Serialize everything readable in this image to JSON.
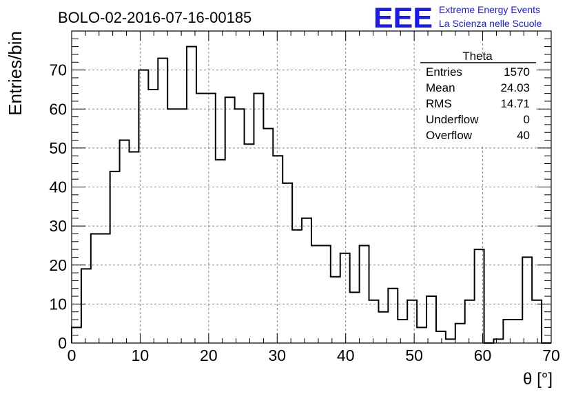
{
  "chart_data": {
    "type": "histogram",
    "title": "BOLO-02-2016-07-16-00185",
    "xlabel": "θ [°]",
    "ylabel": "Entries/bin",
    "xlim": [
      0,
      70
    ],
    "ylim": [
      0,
      80
    ],
    "grid": true,
    "bin_edges_start": 0,
    "bin_width": 1.4,
    "values": [
      4,
      19,
      28,
      28,
      44,
      52,
      49,
      70,
      65,
      73,
      60,
      60,
      76,
      64,
      64,
      47,
      63,
      60,
      51,
      64,
      55,
      48,
      41,
      29,
      32,
      25,
      25,
      17,
      23,
      13,
      25,
      11,
      8,
      14,
      6,
      11,
      4,
      12,
      3,
      1,
      5,
      11,
      24,
      0,
      1,
      6,
      6,
      22,
      11,
      0
    ],
    "xticks": [
      "0",
      "10",
      "20",
      "30",
      "40",
      "50",
      "60",
      "70"
    ],
    "yticks": [
      "0",
      "10",
      "20",
      "30",
      "40",
      "50",
      "60",
      "70"
    ]
  },
  "stats_box": {
    "title": "Theta",
    "rows": [
      {
        "label": "Entries",
        "value": "1570"
      },
      {
        "label": "Mean",
        "value": "24.03"
      },
      {
        "label": "RMS",
        "value": "14.71"
      },
      {
        "label": "Underflow",
        "value": "0"
      },
      {
        "label": "Overflow",
        "value": "40"
      }
    ]
  },
  "logo": {
    "mark": "EEE",
    "line1": "Extreme Energy Events",
    "line2": "La Scienza nelle Scuole",
    "color": "#1a1aee"
  }
}
